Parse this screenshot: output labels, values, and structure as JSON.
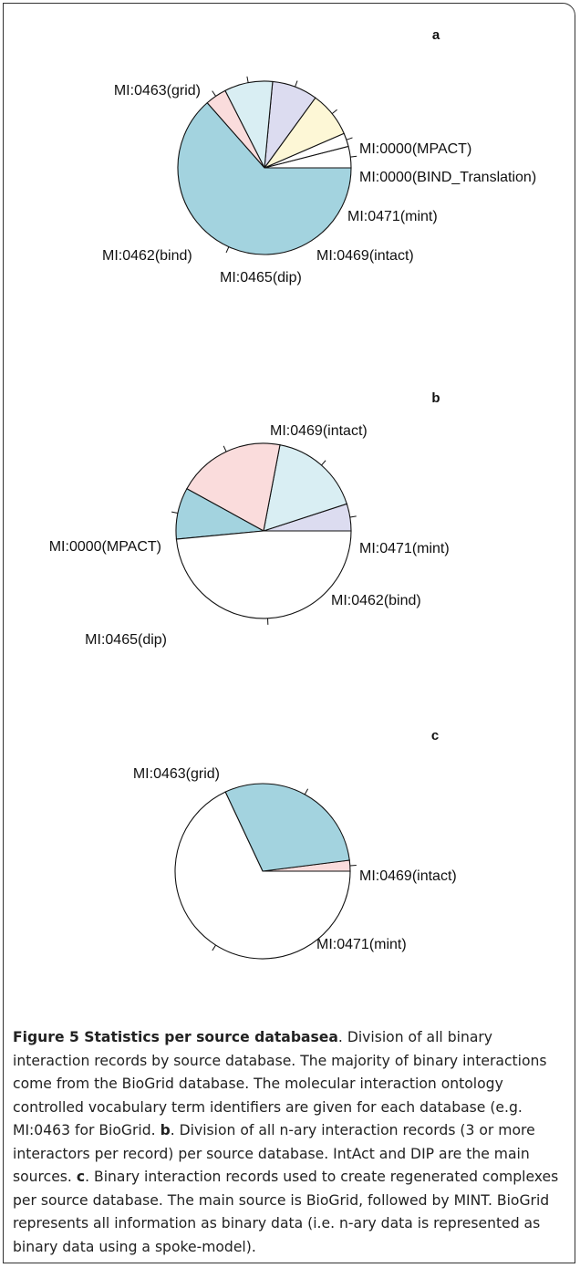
{
  "chart_data": [
    {
      "type": "pie",
      "panel": "a",
      "slices": [
        {
          "label": "MI:0000(MPACT)",
          "value": 4.0,
          "color": "#ffffff"
        },
        {
          "label": "MI:0000(BIND_Translation)",
          "value": 2.5,
          "color": "#ffffff"
        },
        {
          "label": "MI:0471(mint)",
          "value": 8.5,
          "color": "#fdf7d6"
        },
        {
          "label": "MI:0469(intact)",
          "value": 8.5,
          "color": "#dcdcf0"
        },
        {
          "label": "MI:0465(dip)",
          "value": 9.0,
          "color": "#d9eef3"
        },
        {
          "label": "MI:0462(bind)",
          "value": 4.0,
          "color": "#fadcdc"
        },
        {
          "label": "MI:0463(grid)",
          "value": 63.5,
          "color": "#a3d3df"
        }
      ]
    },
    {
      "type": "pie",
      "panel": "b",
      "slices": [
        {
          "label": "MI:0471(mint)",
          "value": 5.0,
          "color": "#dcdcf0"
        },
        {
          "label": "MI:0462(bind)",
          "value": 17.0,
          "color": "#d9eef3"
        },
        {
          "label": "MI:0465(dip)",
          "value": 20.0,
          "color": "#fadcdc"
        },
        {
          "label": "MI:0000(MPACT)",
          "value": 9.5,
          "color": "#a3d3df"
        },
        {
          "label": "MI:0469(intact)",
          "value": 48.5,
          "color": "#ffffff"
        }
      ]
    },
    {
      "type": "pie",
      "panel": "c",
      "slices": [
        {
          "label": "MI:0469(intact)",
          "value": 2.0,
          "color": "#fadcdc"
        },
        {
          "label": "MI:0471(mint)",
          "value": 30.0,
          "color": "#a3d3df"
        },
        {
          "label": "MI:0463(grid)",
          "value": 68.0,
          "color": "#ffffff"
        }
      ]
    }
  ],
  "caption": {
    "title": "Figure 5 Statistics per source database",
    "parts": [
      {
        "letter": "a",
        "text": ". Division of all binary interaction records by source database. The majority of binary interactions come from the BioGrid database. The molecular interaction ontology controlled vocabulary term identifiers are given for each database (e.g. MI:0463 for BioGrid. "
      },
      {
        "letter": "b",
        "text": ". Division of all n-ary interaction records (3 or more interactors per record) per source database. IntAct and DIP are the main sources. "
      },
      {
        "letter": "c",
        "text": ". Binary interaction records used to create regenerated complexes per source database. The main source is BioGrid, followed by MINT. BioGrid represents all information as binary data (i.e. n-ary data is represented as binary data using a spoke-model)."
      }
    ]
  }
}
